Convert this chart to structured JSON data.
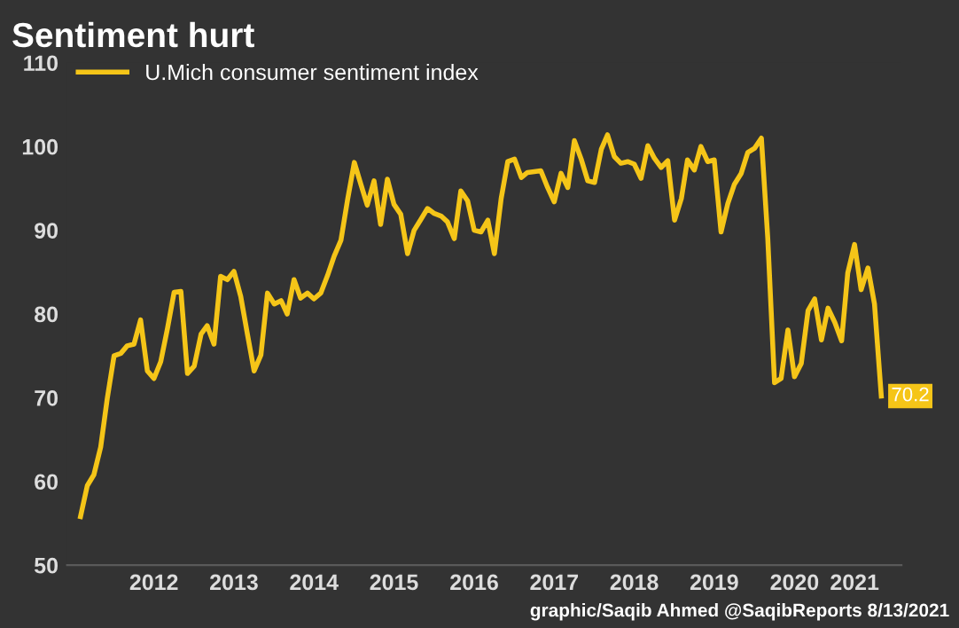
{
  "chart_data": {
    "type": "line",
    "title": "Sentiment hurt",
    "x": [
      "2011-08",
      "2011-09",
      "2011-10",
      "2011-11",
      "2011-12",
      "2012-01",
      "2012-02",
      "2012-03",
      "2012-04",
      "2012-05",
      "2012-06",
      "2012-07",
      "2012-08",
      "2012-09",
      "2012-10",
      "2012-11",
      "2012-12",
      "2013-01",
      "2013-02",
      "2013-03",
      "2013-04",
      "2013-05",
      "2013-06",
      "2013-07",
      "2013-08",
      "2013-09",
      "2013-10",
      "2013-11",
      "2013-12",
      "2014-01",
      "2014-02",
      "2014-03",
      "2014-04",
      "2014-05",
      "2014-06",
      "2014-07",
      "2014-08",
      "2014-09",
      "2014-10",
      "2014-11",
      "2014-12",
      "2015-01",
      "2015-02",
      "2015-03",
      "2015-04",
      "2015-05",
      "2015-06",
      "2015-07",
      "2015-08",
      "2015-09",
      "2015-10",
      "2015-11",
      "2015-12",
      "2016-01",
      "2016-02",
      "2016-03",
      "2016-04",
      "2016-05",
      "2016-06",
      "2016-07",
      "2016-08",
      "2016-09",
      "2016-10",
      "2016-11",
      "2016-12",
      "2017-01",
      "2017-02",
      "2017-03",
      "2017-04",
      "2017-05",
      "2017-06",
      "2017-07",
      "2017-08",
      "2017-09",
      "2017-10",
      "2017-11",
      "2017-12",
      "2018-01",
      "2018-02",
      "2018-03",
      "2018-04",
      "2018-05",
      "2018-06",
      "2018-07",
      "2018-08",
      "2018-09",
      "2018-10",
      "2018-11",
      "2018-12",
      "2019-01",
      "2019-02",
      "2019-03",
      "2019-04",
      "2019-05",
      "2019-06",
      "2019-07",
      "2019-08",
      "2019-09",
      "2019-10",
      "2019-11",
      "2019-12",
      "2020-01",
      "2020-02",
      "2020-03",
      "2020-04",
      "2020-05",
      "2020-06",
      "2020-07",
      "2020-08",
      "2020-09",
      "2020-10",
      "2020-11",
      "2020-12",
      "2021-01",
      "2021-02",
      "2021-03",
      "2021-04",
      "2021-05",
      "2021-06",
      "2021-07",
      "2021-08"
    ],
    "series": [
      {
        "name": "U.Mich consumer sentiment index",
        "color": "#f5c518",
        "values": [
          55.8,
          59.5,
          60.8,
          64.1,
          69.9,
          75.0,
          75.3,
          76.2,
          76.4,
          79.3,
          73.2,
          72.3,
          74.3,
          78.3,
          82.6,
          82.7,
          72.9,
          73.8,
          77.6,
          78.6,
          76.4,
          84.5,
          84.1,
          85.1,
          82.1,
          77.5,
          73.2,
          75.1,
          82.5,
          81.2,
          81.6,
          80.0,
          84.1,
          81.9,
          82.5,
          81.8,
          82.5,
          84.6,
          86.9,
          88.8,
          93.6,
          98.1,
          95.4,
          93.0,
          95.9,
          90.7,
          96.1,
          93.1,
          91.9,
          87.2,
          90.0,
          91.3,
          92.6,
          92.0,
          91.7,
          91.0,
          89.0,
          94.7,
          93.5,
          90.0,
          89.8,
          91.2,
          87.2,
          93.8,
          98.2,
          98.5,
          96.3,
          96.9,
          97.0,
          97.1,
          95.1,
          93.4,
          96.8,
          95.1,
          100.7,
          98.5,
          95.9,
          95.7,
          99.7,
          101.4,
          98.8,
          98.0,
          98.2,
          97.9,
          96.2,
          100.1,
          98.6,
          97.5,
          98.3,
          91.2,
          93.8,
          98.4,
          97.2,
          100.0,
          98.2,
          98.4,
          89.8,
          93.2,
          95.5,
          96.8,
          99.3,
          99.8,
          101.0,
          89.1,
          71.8,
          72.3,
          78.1,
          72.5,
          74.1,
          80.4,
          81.8,
          76.9,
          80.7,
          79.0,
          76.8,
          84.9,
          88.3,
          82.9,
          85.5,
          81.2,
          70.2
        ],
        "value_labels": [
          null,
          null,
          null,
          null,
          null,
          null,
          null,
          null,
          null,
          null,
          null,
          null,
          null,
          null,
          null,
          null,
          null,
          null,
          null,
          null,
          null,
          null,
          null,
          null,
          null,
          null,
          null,
          null,
          null,
          null,
          null,
          null,
          null,
          null,
          null,
          null,
          null,
          null,
          null,
          null,
          null,
          null,
          null,
          null,
          null,
          null,
          null,
          null,
          null,
          null,
          null,
          null,
          null,
          null,
          null,
          null,
          null,
          null,
          null,
          null,
          null,
          null,
          null,
          null,
          null,
          null,
          null,
          null,
          null,
          null,
          null,
          null,
          null,
          null,
          null,
          null,
          null,
          null,
          null,
          null,
          null,
          null,
          null,
          null,
          null,
          null,
          null,
          null,
          null,
          null,
          null,
          null,
          null,
          null,
          null,
          null,
          null,
          null,
          null,
          null,
          null,
          null,
          null,
          null,
          null,
          null,
          null,
          null,
          null,
          null,
          null,
          null,
          null,
          null,
          null,
          null,
          null,
          null,
          null,
          null,
          "70.2"
        ]
      }
    ],
    "xticks": [
      {
        "value": "2012-07",
        "label": "2012"
      },
      {
        "value": "2013-07",
        "label": "2013"
      },
      {
        "value": "2014-07",
        "label": "2014"
      },
      {
        "value": "2015-07",
        "label": "2015"
      },
      {
        "value": "2016-07",
        "label": "2016"
      },
      {
        "value": "2017-07",
        "label": "2017"
      },
      {
        "value": "2018-07",
        "label": "2018"
      },
      {
        "value": "2019-07",
        "label": "2019"
      },
      {
        "value": "2020-07",
        "label": "2020"
      },
      {
        "value": "2021-04",
        "label": "2021"
      }
    ],
    "xlim": [
      "2011-06",
      "2021-11"
    ],
    "ylim": [
      50,
      110
    ],
    "yticks": [
      50,
      60,
      70,
      80,
      90,
      100,
      110
    ],
    "grid": false,
    "legend": "top left",
    "annotations": [
      "graphic/Saqib Ahmed @SaqibReports 8/13/2021"
    ]
  }
}
